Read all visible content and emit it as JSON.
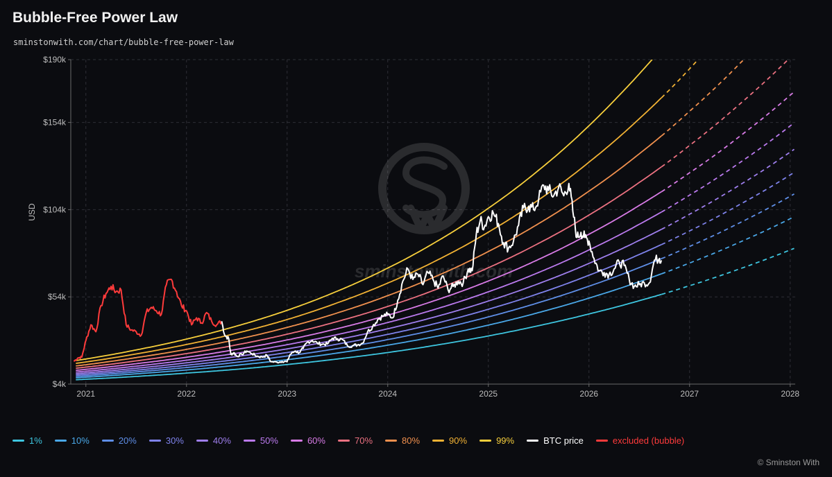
{
  "header": {
    "title": "Bubble-Free Power Law",
    "subtitle": "sminstonwith.com/chart/bubble-free-power-law"
  },
  "watermark": {
    "text": "sminstonwith.com",
    "logo": "sw-circle-logo"
  },
  "copyright": "© Sminston With",
  "chart_data": {
    "type": "line",
    "title": "Bubble-Free Power Law",
    "ylabel": "USD",
    "xlabel": "",
    "xlim": [
      2020.85,
      2028.05
    ],
    "ylim": [
      4,
      190
    ],
    "y_ticks": [
      {
        "value": 4,
        "label": "$4k"
      },
      {
        "value": 54,
        "label": "$54k"
      },
      {
        "value": 104,
        "label": "$104k"
      },
      {
        "value": 154,
        "label": "$154k"
      },
      {
        "value": 190,
        "label": "$190k"
      }
    ],
    "x_ticks": [
      {
        "value": 2021,
        "label": "2021"
      },
      {
        "value": 2022,
        "label": "2022"
      },
      {
        "value": 2023,
        "label": "2023"
      },
      {
        "value": 2024,
        "label": "2024"
      },
      {
        "value": 2025,
        "label": "2025"
      },
      {
        "value": 2026,
        "label": "2026"
      },
      {
        "value": 2027,
        "label": "2027"
      },
      {
        "value": 2028,
        "label": "2028"
      }
    ],
    "grid": true,
    "legend_position": "bottom",
    "projection_start": 2026.72,
    "quantile_bands": [
      {
        "name": "1%",
        "color": "#3ec6e0",
        "points": [
          [
            2020.9,
            6.5
          ],
          [
            2021.5,
            8.4
          ],
          [
            2022,
            10.3
          ],
          [
            2022.5,
            12.5
          ],
          [
            2023,
            15.2
          ],
          [
            2023.5,
            18.4
          ],
          [
            2024,
            22.1
          ],
          [
            2024.5,
            26.5
          ],
          [
            2025,
            31.6
          ],
          [
            2025.5,
            37.5
          ],
          [
            2026,
            44.2
          ],
          [
            2026.5,
            51.8
          ],
          [
            2027,
            60.4
          ],
          [
            2027.5,
            70.1
          ],
          [
            2028,
            80.9
          ],
          [
            2028.05,
            82
          ]
        ]
      },
      {
        "name": "10%",
        "color": "#4aa8e8",
        "points": [
          [
            2020.9,
            7.6
          ],
          [
            2021.5,
            9.9
          ],
          [
            2022,
            12.1
          ],
          [
            2022.5,
            14.8
          ],
          [
            2023,
            18.0
          ],
          [
            2023.5,
            21.8
          ],
          [
            2024,
            26.3
          ],
          [
            2024.5,
            31.6
          ],
          [
            2025,
            37.8
          ],
          [
            2025.5,
            45.0
          ],
          [
            2026,
            53.3
          ],
          [
            2026.5,
            62.7
          ],
          [
            2027,
            73.4
          ],
          [
            2027.5,
            85.4
          ],
          [
            2028,
            98.8
          ],
          [
            2028.05,
            100.2
          ]
        ]
      },
      {
        "name": "20%",
        "color": "#5f8fe8",
        "points": [
          [
            2020.9,
            8.4
          ],
          [
            2021.5,
            11.0
          ],
          [
            2022,
            13.5
          ],
          [
            2022.5,
            16.5
          ],
          [
            2023,
            20.1
          ],
          [
            2023.5,
            24.4
          ],
          [
            2024,
            29.5
          ],
          [
            2024.5,
            35.5
          ],
          [
            2025,
            42.5
          ],
          [
            2025.5,
            50.7
          ],
          [
            2026,
            60.1
          ],
          [
            2026.5,
            70.8
          ],
          [
            2027,
            82.9
          ],
          [
            2027.5,
            96.5
          ],
          [
            2028,
            111.7
          ],
          [
            2028.05,
            113.3
          ]
        ]
      },
      {
        "name": "30%",
        "color": "#7f83ec",
        "points": [
          [
            2020.9,
            9.2
          ],
          [
            2021.5,
            12.0
          ],
          [
            2022,
            14.8
          ],
          [
            2022.5,
            18.1
          ],
          [
            2023,
            22.1
          ],
          [
            2023.5,
            26.9
          ],
          [
            2024,
            32.5
          ],
          [
            2024.5,
            39.1
          ],
          [
            2025,
            46.9
          ],
          [
            2025.5,
            55.9
          ],
          [
            2026,
            66.4
          ],
          [
            2026.5,
            78.3
          ],
          [
            2027,
            91.8
          ],
          [
            2027.5,
            107.0
          ],
          [
            2028,
            123.9
          ],
          [
            2028.05,
            125.7
          ]
        ]
      },
      {
        "name": "40%",
        "color": "#9f7fee",
        "points": [
          [
            2020.9,
            10.0
          ],
          [
            2021.5,
            13.1
          ],
          [
            2022,
            16.2
          ],
          [
            2022.5,
            19.8
          ],
          [
            2023,
            24.2
          ],
          [
            2023.5,
            29.5
          ],
          [
            2024,
            35.7
          ],
          [
            2024.5,
            43.0
          ],
          [
            2025,
            51.6
          ],
          [
            2025.5,
            61.6
          ],
          [
            2026,
            73.2
          ],
          [
            2026.5,
            86.4
          ],
          [
            2027,
            101.4
          ],
          [
            2027.5,
            118.2
          ],
          [
            2028,
            137.0
          ],
          [
            2028.05,
            139
          ]
        ]
      },
      {
        "name": "50%",
        "color": "#bb7aee",
        "points": [
          [
            2020.9,
            10.9
          ],
          [
            2021.5,
            14.3
          ],
          [
            2022,
            17.7
          ],
          [
            2022.5,
            21.7
          ],
          [
            2023,
            26.6
          ],
          [
            2023.5,
            32.4
          ],
          [
            2024,
            39.3
          ],
          [
            2024.5,
            47.4
          ],
          [
            2025,
            56.9
          ],
          [
            2025.5,
            68.0
          ],
          [
            2026,
            80.9
          ],
          [
            2026.5,
            95.6
          ],
          [
            2027,
            112.3
          ],
          [
            2027.5,
            131.0
          ],
          [
            2028,
            152.0
          ],
          [
            2028.05,
            154.2
          ]
        ]
      },
      {
        "name": "60%",
        "color": "#d87be6",
        "points": [
          [
            2020.9,
            11.9
          ],
          [
            2021.5,
            15.7
          ],
          [
            2022,
            19.4
          ],
          [
            2022.5,
            23.9
          ],
          [
            2023,
            29.3
          ],
          [
            2023.5,
            35.8
          ],
          [
            2024,
            43.5
          ],
          [
            2024.5,
            52.5
          ],
          [
            2025,
            63.1
          ],
          [
            2025.5,
            75.5
          ],
          [
            2026,
            89.9
          ],
          [
            2026.5,
            106.4
          ],
          [
            2027,
            125.1
          ],
          [
            2027.5,
            146.1
          ],
          [
            2028,
            169.6
          ],
          [
            2028.05,
            172
          ]
        ]
      },
      {
        "name": "70%",
        "color": "#ec7181",
        "points": [
          [
            2020.9,
            13.1
          ],
          [
            2021.5,
            17.3
          ],
          [
            2022,
            21.5
          ],
          [
            2022.5,
            26.5
          ],
          [
            2023,
            32.6
          ],
          [
            2023.5,
            39.9
          ],
          [
            2024,
            48.5
          ],
          [
            2024.5,
            58.7
          ],
          [
            2025,
            70.7
          ],
          [
            2025.5,
            84.7
          ],
          [
            2026,
            100.9
          ],
          [
            2026.5,
            119.6
          ],
          [
            2027,
            140.8
          ],
          [
            2027.5,
            164.6
          ],
          [
            2028,
            191.2
          ]
        ]
      },
      {
        "name": "80%",
        "color": "#f0904e",
        "points": [
          [
            2020.9,
            14.4
          ],
          [
            2021.5,
            19.2
          ],
          [
            2022,
            23.9
          ],
          [
            2022.5,
            29.6
          ],
          [
            2023,
            36.5
          ],
          [
            2023.5,
            44.8
          ],
          [
            2024,
            54.7
          ],
          [
            2024.5,
            66.3
          ],
          [
            2025,
            80.0
          ],
          [
            2025.5,
            96.0
          ],
          [
            2026,
            114.6
          ],
          [
            2026.5,
            136.0
          ],
          [
            2027,
            160.4
          ],
          [
            2027.5,
            187.8
          ],
          [
            2027.6,
            193.5
          ]
        ]
      },
      {
        "name": "90%",
        "color": "#f2b234",
        "points": [
          [
            2020.9,
            15.9
          ],
          [
            2021.5,
            21.3
          ],
          [
            2022,
            26.7
          ],
          [
            2022.5,
            33.2
          ],
          [
            2023,
            41.0
          ],
          [
            2023.5,
            50.6
          ],
          [
            2024,
            61.9
          ],
          [
            2024.5,
            75.3
          ],
          [
            2025,
            91.1
          ],
          [
            2025.5,
            109.6
          ],
          [
            2026,
            131.2
          ],
          [
            2026.5,
            156.1
          ],
          [
            2026.9,
            178.6
          ],
          [
            2027.1,
            191
          ]
        ]
      },
      {
        "name": "99%",
        "color": "#f7cf3c",
        "points": [
          [
            2020.9,
            17.5
          ],
          [
            2021.5,
            23.6
          ],
          [
            2022,
            29.8
          ],
          [
            2022.5,
            37.3
          ],
          [
            2023,
            46.3
          ],
          [
            2023.5,
            57.3
          ],
          [
            2024,
            70.5
          ],
          [
            2024.5,
            86.2
          ],
          [
            2025,
            104.8
          ],
          [
            2025.5,
            126.6
          ],
          [
            2026,
            152.1
          ],
          [
            2026.3,
            169.5
          ],
          [
            2026.55,
            185
          ],
          [
            2026.65,
            191.5
          ]
        ]
      }
    ],
    "btc_price": {
      "name": "BTC price",
      "color": "#ffffff",
      "points": [
        [
          2022.35,
          40
        ],
        [
          2022.38,
          32
        ],
        [
          2022.42,
          30
        ],
        [
          2022.44,
          21
        ],
        [
          2022.47,
          22
        ],
        [
          2022.5,
          20
        ],
        [
          2022.55,
          21
        ],
        [
          2022.6,
          23
        ],
        [
          2022.65,
          21.5
        ],
        [
          2022.7,
          20
        ],
        [
          2022.75,
          19.5
        ],
        [
          2022.8,
          20.5
        ],
        [
          2022.84,
          16.8
        ],
        [
          2022.9,
          16.5
        ],
        [
          2022.95,
          17
        ],
        [
          2023.0,
          16.8
        ],
        [
          2023.03,
          21
        ],
        [
          2023.08,
          23
        ],
        [
          2023.12,
          22
        ],
        [
          2023.16,
          24.5
        ],
        [
          2023.2,
          28
        ],
        [
          2023.25,
          29
        ],
        [
          2023.3,
          27.5
        ],
        [
          2023.35,
          26.8
        ],
        [
          2023.4,
          27
        ],
        [
          2023.45,
          30.3
        ],
        [
          2023.5,
          30
        ],
        [
          2023.55,
          29.5
        ],
        [
          2023.6,
          26
        ],
        [
          2023.65,
          26
        ],
        [
          2023.7,
          26.5
        ],
        [
          2023.75,
          27.5
        ],
        [
          2023.8,
          34
        ],
        [
          2023.85,
          37
        ],
        [
          2023.9,
          41
        ],
        [
          2023.95,
          43
        ],
        [
          2024.0,
          44
        ],
        [
          2024.05,
          42
        ],
        [
          2024.1,
          52
        ],
        [
          2024.15,
          63
        ],
        [
          2024.2,
          70
        ],
        [
          2024.25,
          64
        ],
        [
          2024.3,
          67
        ],
        [
          2024.35,
          61
        ],
        [
          2024.4,
          68
        ],
        [
          2024.45,
          64
        ],
        [
          2024.5,
          59
        ],
        [
          2024.55,
          66
        ],
        [
          2024.6,
          58
        ],
        [
          2024.65,
          60
        ],
        [
          2024.7,
          63
        ],
        [
          2024.75,
          62
        ],
        [
          2024.8,
          70
        ],
        [
          2024.84,
          69
        ],
        [
          2024.88,
          90
        ],
        [
          2024.92,
          98
        ],
        [
          2024.96,
          94
        ],
        [
          2025.0,
          100
        ],
        [
          2025.05,
          102
        ],
        [
          2025.1,
          96
        ],
        [
          2025.15,
          85
        ],
        [
          2025.2,
          82
        ],
        [
          2025.25,
          86
        ],
        [
          2025.3,
          95
        ],
        [
          2025.35,
          105
        ],
        [
          2025.4,
          106
        ],
        [
          2025.45,
          104
        ],
        [
          2025.5,
          110
        ],
        [
          2025.55,
          118
        ],
        [
          2025.6,
          115
        ],
        [
          2025.65,
          112
        ],
        [
          2025.7,
          117
        ],
        [
          2025.75,
          112
        ],
        [
          2025.8,
          119
        ],
        [
          2025.84,
          103
        ],
        [
          2025.88,
          88
        ],
        [
          2025.92,
          91
        ],
        [
          2025.96,
          88
        ],
        [
          2026.0,
          86
        ],
        [
          2026.05,
          76
        ],
        [
          2026.1,
          69
        ],
        [
          2026.15,
          68
        ],
        [
          2026.2,
          67
        ],
        [
          2026.25,
          70
        ],
        [
          2026.3,
          74
        ],
        [
          2026.35,
          72
        ],
        [
          2026.4,
          64
        ],
        [
          2026.45,
          60
        ],
        [
          2026.5,
          61
        ],
        [
          2026.55,
          62
        ],
        [
          2026.6,
          62
        ],
        [
          2026.65,
          75
        ],
        [
          2026.7,
          76
        ],
        [
          2026.72,
          75
        ]
      ]
    },
    "excluded_bubble": {
      "name": "excluded (bubble)",
      "color": "#ff3b3b",
      "points": [
        [
          2020.88,
          17
        ],
        [
          2020.92,
          19
        ],
        [
          2020.96,
          19.5
        ],
        [
          2021.0,
          29
        ],
        [
          2021.05,
          38
        ],
        [
          2021.1,
          34
        ],
        [
          2021.15,
          49
        ],
        [
          2021.2,
          56
        ],
        [
          2021.25,
          60
        ],
        [
          2021.3,
          57
        ],
        [
          2021.35,
          58
        ],
        [
          2021.4,
          38
        ],
        [
          2021.45,
          35
        ],
        [
          2021.5,
          34
        ],
        [
          2021.55,
          32
        ],
        [
          2021.6,
          45
        ],
        [
          2021.65,
          48
        ],
        [
          2021.7,
          46
        ],
        [
          2021.75,
          44
        ],
        [
          2021.8,
          61
        ],
        [
          2021.85,
          64
        ],
        [
          2021.9,
          57
        ],
        [
          2021.95,
          49
        ],
        [
          2022.0,
          46
        ],
        [
          2022.05,
          38
        ],
        [
          2022.1,
          42
        ],
        [
          2022.15,
          39
        ],
        [
          2022.2,
          45
        ],
        [
          2022.25,
          40
        ],
        [
          2022.3,
          38
        ],
        [
          2022.35,
          40
        ]
      ]
    }
  }
}
